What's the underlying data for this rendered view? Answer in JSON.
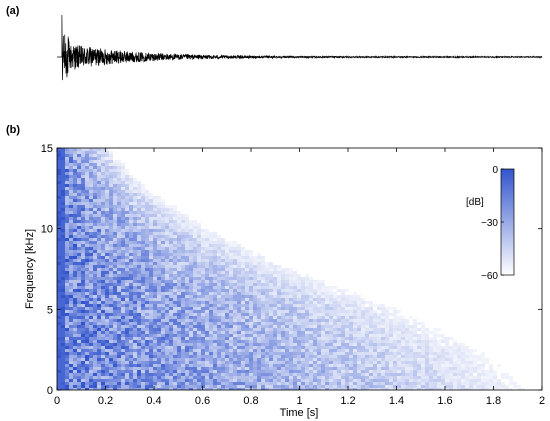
{
  "panel_a": {
    "label": "(a)"
  },
  "panel_b": {
    "label": "(b)"
  },
  "chart_data": [
    {
      "type": "line",
      "panel": "a",
      "title": "",
      "xlabel": "",
      "ylabel": "",
      "xlim": [
        0,
        2
      ],
      "axes_visible": false,
      "series": [
        {
          "name": "",
          "description": "impulse response waveform, exponentially decaying",
          "onset_time": 0.02,
          "peak_amplitude": 1.0,
          "envelope_decay_time": 0.35,
          "color": "#000000"
        }
      ]
    },
    {
      "type": "heatmap",
      "panel": "b",
      "title": "",
      "xlabel": "Time [s]",
      "ylabel": "Frequency [kHz]",
      "xlim": [
        0,
        2
      ],
      "ylim": [
        0,
        15
      ],
      "xticks": [
        0,
        0.2,
        0.4,
        0.6,
        0.8,
        1,
        1.2,
        1.4,
        1.6,
        1.8,
        2
      ],
      "xtick_labels": [
        "0",
        "0.2",
        "0.4",
        "0.6",
        "0.8",
        "1",
        "1.2",
        "1.4",
        "1.6",
        "1.8",
        "2"
      ],
      "yticks": [
        0,
        5,
        10,
        15
      ],
      "ytick_labels": [
        "0",
        "5",
        "10",
        "15"
      ],
      "grid": false,
      "colorbar": {
        "label": "[dB]",
        "range": [
          -60,
          0
        ],
        "ticks": [
          0,
          -30,
          -60
        ],
        "tick_labels": [
          "0",
          "−30",
          "−60"
        ],
        "color_max": "#3355cc",
        "color_min": "#ffffff",
        "placement": "top-right, inside plot"
      },
      "decay_boundary": {
        "frequency_khz": [
          0,
          2.5,
          5,
          7.5,
          10,
          12.5,
          15
        ],
        "decay_end_time_s": [
          2.0,
          1.8,
          1.45,
          1.0,
          0.65,
          0.38,
          0.22
        ]
      }
    }
  ]
}
